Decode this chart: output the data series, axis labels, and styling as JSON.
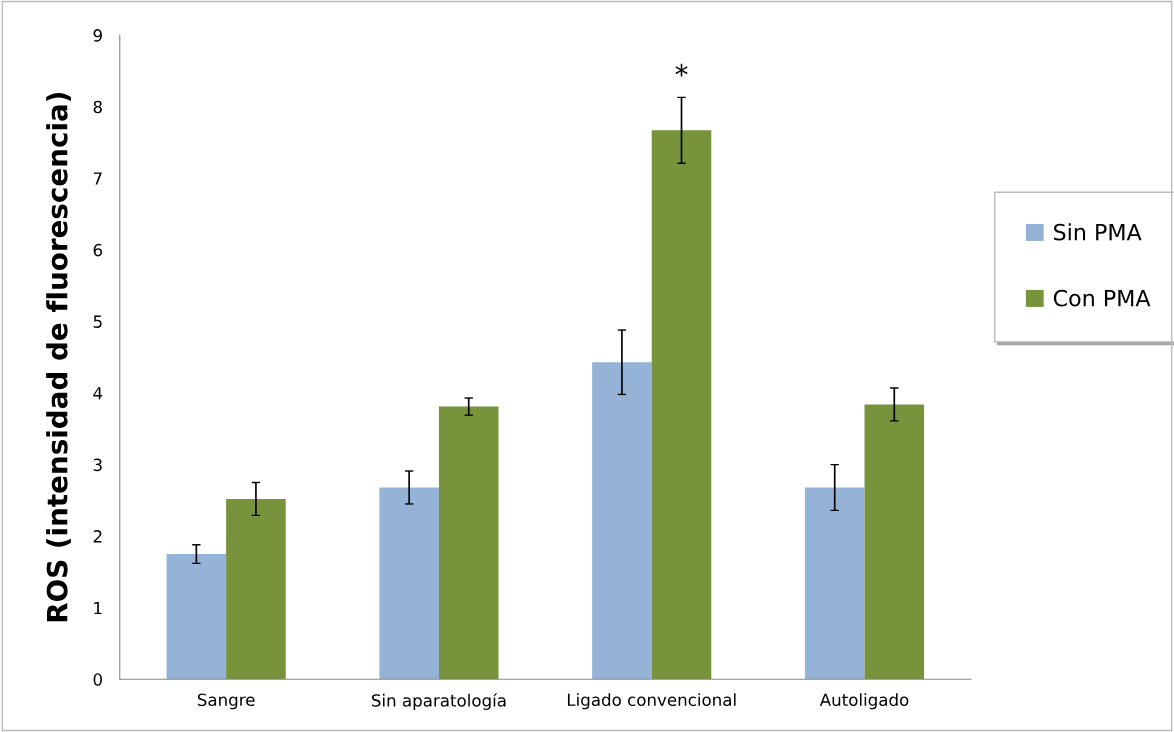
{
  "chart_data": {
    "type": "bar",
    "ylabel": "ROS (intensidad de fluorescencia)",
    "categories": [
      "Sangre",
      "Sin aparatología",
      "Ligado convencional",
      "Autoligado"
    ],
    "series": [
      {
        "name": "Sin PMA",
        "color": "#95b3d7",
        "values": [
          1.75,
          2.68,
          4.43,
          2.68
        ],
        "errors": [
          0.13,
          0.23,
          0.45,
          0.32
        ]
      },
      {
        "name": "Con PMA",
        "color": "#77933c",
        "values": [
          2.52,
          3.81,
          7.67,
          3.84
        ],
        "errors": [
          0.23,
          0.12,
          0.46,
          0.23
        ]
      }
    ],
    "ylim": [
      0,
      9
    ],
    "yticks": [
      0,
      1,
      2,
      3,
      4,
      5,
      6,
      7,
      8,
      9
    ],
    "grid": false,
    "legend": "right",
    "annotations": [
      "*"
    ]
  }
}
